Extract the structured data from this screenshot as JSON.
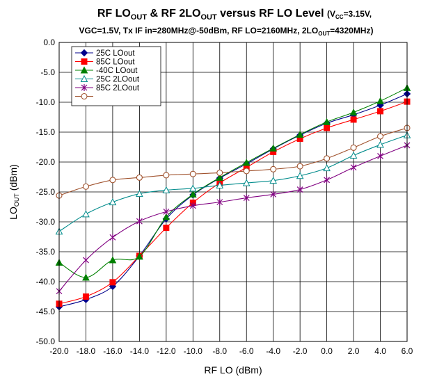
{
  "chart_data": {
    "type": "line",
    "title": {
      "line1_main": "RF LO",
      "line1_sub1": "OUT",
      "line1_mid": " & RF 2LO",
      "line1_sub2": "OUT",
      "line1_end": " versus RF LO Level ",
      "line1_paren_start": "(V",
      "line1_paren_sub": "CC",
      "line1_paren_end": "=3.15V,",
      "line2_start": "VGC=1.5V, Tx IF in=280MHz@-50dBm, RF LO=2160MHz, 2LO",
      "line2_sub": "OUT",
      "line2_end": "=4320MHz)"
    },
    "xlabel": "RF LO (dBm)",
    "ylabel_main": "LO",
    "ylabel_sub": "OUT",
    "ylabel_unit": " (dBm)",
    "xlim": [
      -20,
      6
    ],
    "ylim": [
      -50,
      0
    ],
    "xticks": [
      "-20.0",
      "-18.0",
      "-16.0",
      "-14.0",
      "-12.0",
      "-10.0",
      "-8.0",
      "-6.0",
      "-4.0",
      "-2.0",
      "0.0",
      "2.0",
      "4.0",
      "6.0"
    ],
    "yticks": [
      "0.0",
      "-5.0",
      "-10.0",
      "-15.0",
      "-20.0",
      "-25.0",
      "-30.0",
      "-35.0",
      "-40.0",
      "-45.0",
      "-50.0"
    ],
    "grid": true,
    "legend_position": "top-left",
    "x": [
      -20,
      -18,
      -16,
      -14,
      -12,
      -10,
      -8,
      -6,
      -4,
      -2,
      0,
      2,
      4,
      6
    ],
    "series": [
      {
        "name": "25C LOout",
        "color": "#00008B",
        "marker": "diamond",
        "values": [
          -44.2,
          -43.0,
          -40.8,
          -35.7,
          -29.5,
          -25.5,
          -22.7,
          -20.3,
          -17.8,
          -15.5,
          -13.5,
          -12.1,
          -10.5,
          -8.6
        ]
      },
      {
        "name": "85C LOout",
        "color": "#FF0000",
        "marker": "square",
        "values": [
          -43.7,
          -42.5,
          -40.1,
          -35.7,
          -31.0,
          -26.8,
          -23.5,
          -20.9,
          -18.3,
          -16.1,
          -14.3,
          -12.9,
          -11.5,
          -9.9
        ]
      },
      {
        "name": "-40C LOout",
        "color": "#008000",
        "marker": "triangle",
        "values": [
          -36.8,
          -39.3,
          -36.4,
          -35.8,
          -29.2,
          -25.4,
          -22.6,
          -20.1,
          -17.7,
          -15.4,
          -13.3,
          -11.7,
          -9.8,
          -7.6
        ]
      },
      {
        "name": "25C 2LOout",
        "color": "#008B8B",
        "marker": "triangle-open",
        "values": [
          -31.6,
          -28.7,
          -26.7,
          -25.3,
          -24.7,
          -24.4,
          -23.9,
          -23.5,
          -23.1,
          -22.3,
          -21.0,
          -18.9,
          -17.1,
          -15.5
        ]
      },
      {
        "name": "85C 2LOout",
        "color": "#800080",
        "marker": "star",
        "values": [
          -41.6,
          -36.4,
          -32.6,
          -29.9,
          -28.3,
          -27.3,
          -26.7,
          -26.0,
          -25.4,
          -24.6,
          -23.0,
          -20.9,
          -19.0,
          -17.2
        ]
      },
      {
        "name": "",
        "color": "#A0522D",
        "marker": "circle-open",
        "values": [
          -25.6,
          -24.1,
          -23.0,
          -22.6,
          -22.2,
          -22.0,
          -21.8,
          -21.5,
          -21.2,
          -20.7,
          -19.4,
          -17.6,
          -15.7,
          -14.3
        ]
      }
    ]
  }
}
